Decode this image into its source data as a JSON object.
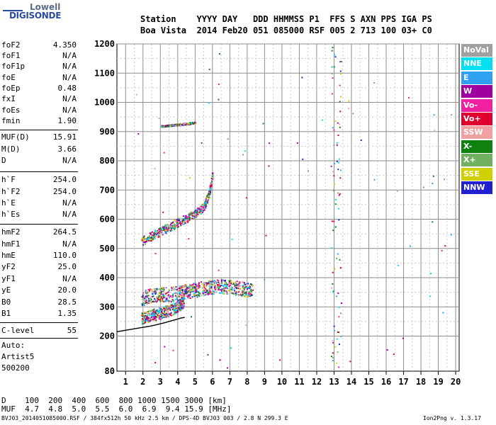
{
  "logo": {
    "line1": "Lowell",
    "line2": "DIGISONDE"
  },
  "header": {
    "line1": "Station    YYYY DAY   DDD HHMMSS P1  FFS S AXN PPS IGA PS",
    "line2": "Boa Vista  2014 Feb20 051 085000 RSF 005 2 713 100 03+ C0"
  },
  "params": [
    {
      "label": "foF2",
      "value": "4.350"
    },
    {
      "label": "foF1",
      "value": "N/A"
    },
    {
      "label": "foF1p",
      "value": "N/A"
    },
    {
      "label": "foE",
      "value": "N/A"
    },
    {
      "label": "foEp",
      "value": "0.48"
    },
    {
      "label": "fxI",
      "value": "N/A"
    },
    {
      "label": "foEs",
      "value": "N/A"
    },
    {
      "label": "fmin",
      "value": "1.90"
    },
    {
      "label": "MUF(D)",
      "value": "15.91"
    },
    {
      "label": "M(D)",
      "value": "3.66"
    },
    {
      "label": "D",
      "value": "N/A"
    },
    {
      "label": "h`F",
      "value": "254.0"
    },
    {
      "label": "h`F2",
      "value": "254.0"
    },
    {
      "label": "h`E",
      "value": "N/A"
    },
    {
      "label": "h`Es",
      "value": "N/A"
    },
    {
      "label": "hmF2",
      "value": "264.5"
    },
    {
      "label": "hmF1",
      "value": "N/A"
    },
    {
      "label": "hmE",
      "value": "110.0"
    },
    {
      "label": "yF2",
      "value": "25.0"
    },
    {
      "label": "yF1",
      "value": "N/A"
    },
    {
      "label": "yE",
      "value": "20.0"
    },
    {
      "label": "B0",
      "value": "28.5"
    },
    {
      "label": "B1",
      "value": "1.35"
    },
    {
      "label": "C-level",
      "value": "55"
    }
  ],
  "autoscaling": {
    "line1": "Auto:",
    "line2": "Artist5",
    "line3": "500200"
  },
  "legend": [
    {
      "label": "NoVal",
      "color": "#a0a0a0"
    },
    {
      "label": "NNE",
      "color": "#00e0f0"
    },
    {
      "label": "E",
      "color": "#30a0f0"
    },
    {
      "label": "W",
      "color": "#a000a0"
    },
    {
      "label": "Vo-",
      "color": "#f020a0"
    },
    {
      "label": "Vo+",
      "color": "#e00030"
    },
    {
      "label": "SSW",
      "color": "#f0a0a0"
    },
    {
      "label": "X-",
      "color": "#108010"
    },
    {
      "label": "X+",
      "color": "#70b060"
    },
    {
      "label": "SSE",
      "color": "#d0d000"
    },
    {
      "label": "NNW",
      "color": "#2020d0"
    }
  ],
  "chart_data": {
    "type": "scatter",
    "xlim": [
      0.5,
      20.2
    ],
    "ylim": [
      80,
      1200
    ],
    "x_ticks": [
      1,
      2,
      3,
      4,
      5,
      6,
      7,
      8,
      9,
      10,
      11,
      12,
      13,
      14,
      15,
      16,
      17,
      18,
      19,
      20
    ],
    "y_ticks": [
      80,
      200,
      300,
      400,
      500,
      600,
      700,
      800,
      900,
      1000,
      1100,
      1200
    ],
    "grid": true,
    "traces": [
      {
        "name": "F2 main trace O",
        "x": [
          1.9,
          2.2,
          2.6,
          3.0,
          3.4,
          3.8,
          4.1,
          4.35
        ],
        "y": [
          262,
          268,
          275,
          280,
          288,
          296,
          308,
          320
        ],
        "spread": 20
      },
      {
        "name": "F2 main trace X",
        "x": [
          1.9,
          2.4,
          3.0,
          3.6,
          4.2,
          4.6,
          5.0,
          5.6,
          6.0,
          6.6,
          7.2,
          7.8,
          8.3
        ],
        "y": [
          330,
          340,
          345,
          345,
          350,
          355,
          360,
          365,
          370,
          372,
          368,
          362,
          358
        ],
        "spread": 25
      },
      {
        "name": "multiple hop",
        "x": [
          1.9,
          2.5,
          3.0,
          3.5,
          4.0,
          4.5,
          5.0,
          5.5,
          5.8,
          6.0
        ],
        "y": [
          525,
          545,
          560,
          575,
          590,
          605,
          620,
          645,
          690,
          760
        ],
        "spread": 15
      },
      {
        "name": "horizontal band",
        "x": [
          3.0,
          3.5,
          4.0,
          4.5,
          5.0
        ],
        "y": [
          920,
          922,
          925,
          928,
          932
        ],
        "spread": 3
      }
    ],
    "profile_curve": {
      "x": [
        0.5,
        1.5,
        2.5,
        3.2,
        3.8,
        4.2,
        4.4
      ],
      "y": [
        215,
        225,
        235,
        245,
        255,
        262,
        264
      ]
    },
    "d_table": {
      "distance_km": [
        100,
        200,
        400,
        600,
        800,
        1000,
        1500,
        3000
      ],
      "muf_mhz": [
        4.7,
        4.8,
        5.0,
        5.5,
        6.0,
        6.9,
        9.4,
        15.9
      ]
    }
  },
  "distance_table": {
    "line1": "D    100  200  400  600  800 1000 1500 3000 [km]",
    "line2": "MUF  4.7  4.8  5.0  5.5  6.0  6.9  9.4 15.9 [MHz]"
  },
  "footer": "BVJ03_2014051085000.RSF / 384fx512h 50 kHz 2.5 km / DPS-4D BVJ03 003 / 2.8 N 299.3 E",
  "version": "Ion2Png v. 1.3.17"
}
